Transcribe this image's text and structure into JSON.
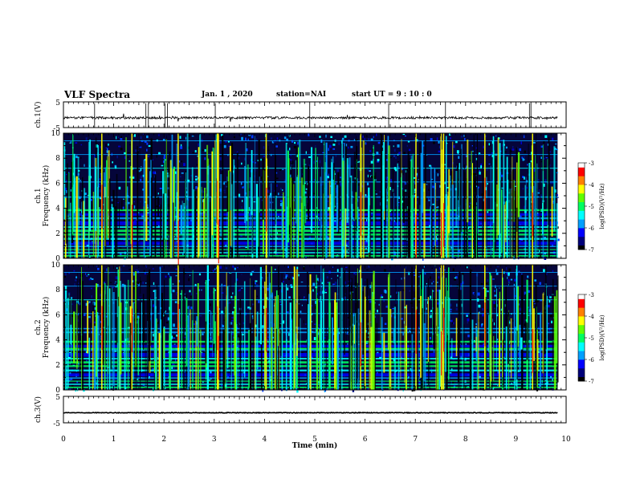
{
  "header": {
    "title": "VLF Spectra",
    "date": "Jan. 1 , 2020",
    "station": "station=NAI",
    "start_ut": "start UT = 9 : 10 : 0"
  },
  "colormap": [
    "#000000",
    "#00007a",
    "#0000ff",
    "#00a0ff",
    "#00ffff",
    "#00ff60",
    "#60ff00",
    "#ffff00",
    "#ff8000",
    "#ff0000",
    "#ffffff"
  ],
  "chart_data": [
    {
      "id": "ch1-waveform",
      "type": "line",
      "ylabel": "ch.1(V)",
      "ylim": [
        -5,
        5
      ],
      "yticks": [
        5,
        -5
      ],
      "xlim": [
        0,
        10
      ],
      "baseline_v": -1.2,
      "data_end_min": 9.83
    },
    {
      "id": "ch1-spectrogram",
      "type": "heatmap",
      "ylabel": "ch.1\nFrequency (kHz)",
      "ylim": [
        0,
        10
      ],
      "yticks": [
        0,
        2,
        4,
        6,
        8,
        10
      ],
      "xlim": [
        0,
        10
      ],
      "data_end_min": 9.83,
      "colorbar": {
        "label": "log(PSD)(V²/Hz)",
        "range": [
          -7,
          -3
        ],
        "ticks": [
          "-3",
          "-4",
          "-5",
          "-6",
          "-7"
        ]
      }
    },
    {
      "id": "ch2-spectrogram",
      "type": "heatmap",
      "ylabel": "ch.2\nFrequency (kHz)",
      "ylim": [
        0,
        10
      ],
      "yticks": [
        0,
        2,
        4,
        6,
        8,
        10
      ],
      "xlim": [
        0,
        10
      ],
      "data_end_min": 9.83,
      "colorbar": {
        "label": "log(PSD)(V²/Hz)",
        "range": [
          -7,
          -3
        ],
        "ticks": [
          "-3",
          "-4",
          "-5",
          "-6",
          "-7"
        ]
      }
    },
    {
      "id": "ch3-waveform",
      "type": "line",
      "ylabel": "ch.3(V)",
      "ylim": [
        -5,
        5
      ],
      "yticks": [
        5,
        -5
      ],
      "xlim": [
        0,
        10
      ],
      "baseline_v": -1.2,
      "data_end_min": 9.83
    }
  ],
  "x_axis": {
    "label": "Time (min)",
    "ticks": [
      "0",
      "1",
      "2",
      "3",
      "4",
      "5",
      "6",
      "7",
      "8",
      "9",
      "10"
    ]
  }
}
